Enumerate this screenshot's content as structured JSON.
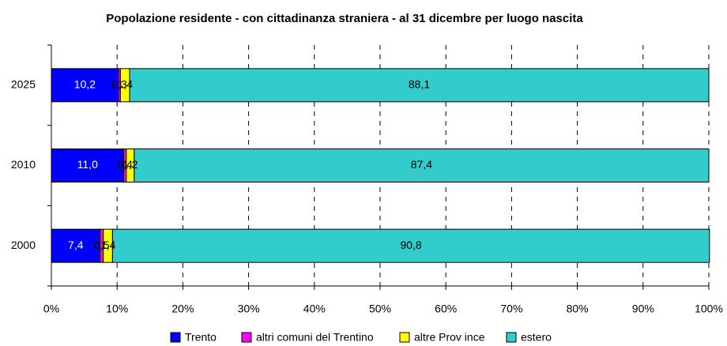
{
  "chart_data": {
    "type": "stacked_hbar_percent",
    "title": "Popolazione residente - con cittadinanza straniera - al 31 dicembre per luogo nascita",
    "categories": [
      "2025",
      "2010",
      "2000"
    ],
    "series": [
      {
        "name": "Trento",
        "color": "#0000ff",
        "values": [
          10.2,
          11.0,
          7.4
        ],
        "value_labels": [
          "10,2",
          "11,0",
          "7,4"
        ]
      },
      {
        "name": "altri comuni del Trentino",
        "color": "#ff00ff",
        "values": [
          0.3,
          0.4,
          0.5
        ],
        "value_labels": [
          "0,3",
          "0,4",
          "0,5"
        ]
      },
      {
        "name": "altre Prov ince",
        "color": "#ffff00",
        "values": [
          1.4,
          1.2,
          1.4
        ],
        "value_labels": [
          "1,4",
          "1,2",
          "1,4"
        ]
      },
      {
        "name": "estero",
        "color": "#33cccc",
        "values": [
          88.1,
          87.4,
          90.8
        ],
        "value_labels": [
          "88,1",
          "87,4",
          "90,8"
        ]
      }
    ],
    "xlim": [
      0,
      100
    ],
    "xticks": [
      {
        "value": 0,
        "label": "0%"
      },
      {
        "value": 10,
        "label": "10%"
      },
      {
        "value": 20,
        "label": "20%"
      },
      {
        "value": 30,
        "label": "30%"
      },
      {
        "value": 40,
        "label": "40%"
      },
      {
        "value": 50,
        "label": "50%"
      },
      {
        "value": 60,
        "label": "60%"
      },
      {
        "value": 70,
        "label": "70%"
      },
      {
        "value": 80,
        "label": "80%"
      },
      {
        "value": 90,
        "label": "90%"
      },
      {
        "value": 100,
        "label": "100%"
      }
    ],
    "grid": true,
    "legend": "bottom"
  }
}
